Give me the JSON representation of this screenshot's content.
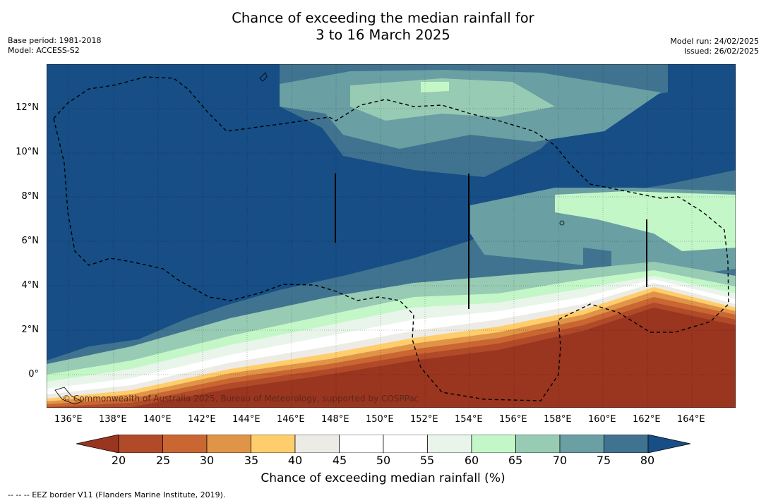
{
  "title_line1": "Chance of exceeding the median rainfall for",
  "title_line2": "3 to 16 March 2025",
  "meta_left": [
    "Base period: 1981-2018",
    "Model: ACCESS-S2"
  ],
  "meta_right": [
    "Model run: 24/02/2025",
    "Issued: 26/02/2025"
  ],
  "copyright": "© Commonwealth of Australia 2025, Bureau of Meteorology, supported by COSPPac",
  "x_ticks": [
    "136°E",
    "138°E",
    "140°E",
    "142°E",
    "144°E",
    "146°E",
    "148°E",
    "150°E",
    "152°E",
    "154°E",
    "156°E",
    "158°E",
    "160°E",
    "162°E",
    "164°E"
  ],
  "y_ticks": [
    "12°N",
    "10°N",
    "8°N",
    "6°N",
    "4°N",
    "2°N",
    "0°"
  ],
  "colorbar": {
    "labels": [
      "20",
      "25",
      "30",
      "35",
      "40",
      "45",
      "50",
      "55",
      "60",
      "65",
      "70",
      "75",
      "80"
    ],
    "colors": [
      "#9a3520",
      "#b04a28",
      "#c96632",
      "#e09448",
      "#ffcd6b",
      "#ecebe6",
      "#ffffff",
      "#ffffff",
      "#e9f5ea",
      "#c4f7c8",
      "#98cbb3",
      "#6a9fa3",
      "#40738f",
      "#164e85"
    ],
    "title": "Chance of exceeding median rainfall (%)"
  },
  "footnote": "--  --  -- EEZ border V11 (Flanders Marine Institute, 2019)."
}
